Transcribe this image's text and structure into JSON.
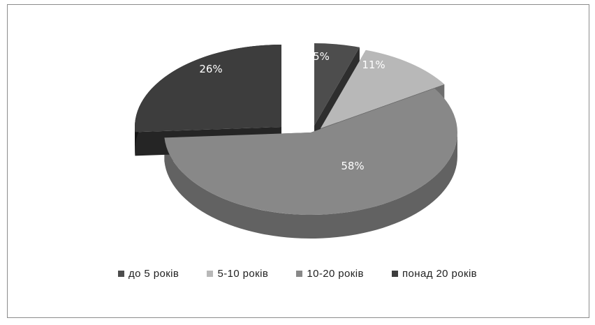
{
  "chart_data": {
    "type": "pie",
    "style": "3d-exploded",
    "categories": [
      "до 5 років",
      "5-10 років",
      "10-20 років",
      "понад 20 років"
    ],
    "values": [
      5,
      11,
      58,
      26
    ],
    "labels": [
      "5%",
      "11%",
      "58%",
      "26%"
    ],
    "colors": [
      "#4d4d4d",
      "#b8b8b8",
      "#888888",
      "#3d3d3d"
    ],
    "legend_position": "bottom"
  }
}
